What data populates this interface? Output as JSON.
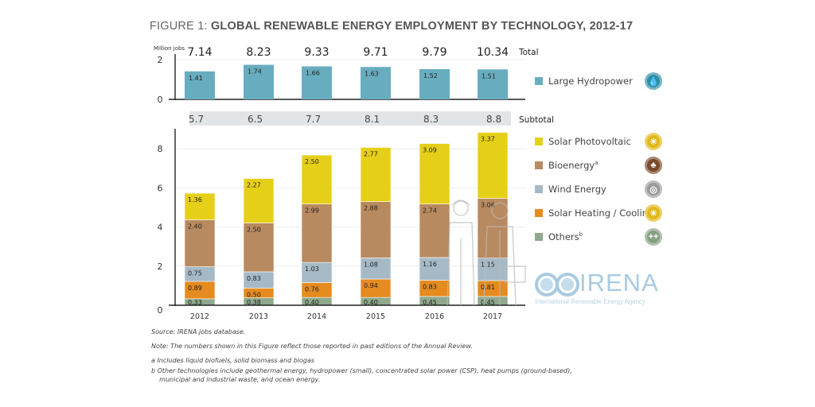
{
  "title": {
    "lead": "FIGURE 1:",
    "main": "GLOBAL RENEWABLE ENERGY EMPLOYMENT BY TECHNOLOGY, 2012-17"
  },
  "chart_data": [
    {
      "type": "bar",
      "title": "Large Hydropower",
      "ylabel": "Million jobs",
      "ylim": [
        0,
        2
      ],
      "yticks": [
        "0",
        "2"
      ],
      "categories": [
        "2012",
        "2013",
        "2014",
        "2015",
        "2016",
        "2017"
      ],
      "series": [
        {
          "name": "Large Hydropower",
          "color": "#68adbf",
          "values": [
            1.41,
            1.74,
            1.66,
            1.63,
            1.52,
            1.51
          ],
          "labels": [
            "1.41",
            "1.74",
            "1.66",
            "1.63",
            "1.52",
            "1.51"
          ]
        }
      ],
      "totals": [
        "7.14",
        "8.23",
        "9.33",
        "9.71",
        "9.79",
        "10.34"
      ],
      "totals_label": "Total",
      "grid": true
    },
    {
      "type": "bar",
      "stacked": true,
      "ylim": [
        0,
        9
      ],
      "yticks": [
        "0",
        "2",
        "4",
        "6",
        "8"
      ],
      "categories": [
        "2012",
        "2013",
        "2014",
        "2015",
        "2016",
        "2017"
      ],
      "series": [
        {
          "name": "Others",
          "color": "#8fa98d",
          "values": [
            0.33,
            0.38,
            0.4,
            0.4,
            0.45,
            0.45
          ],
          "labels": [
            "0.33",
            "0.38",
            "0.40",
            "0.40",
            "0.45",
            "0.45"
          ]
        },
        {
          "name": "Solar Heating/Cooling",
          "color": "#e58b1f",
          "values": [
            0.89,
            0.5,
            0.76,
            0.94,
            0.83,
            0.81
          ],
          "labels": [
            "0.89",
            "0.50",
            "0.76",
            "0.94",
            "0.83",
            "0.81"
          ]
        },
        {
          "name": "Wind Energy",
          "color": "#a6b9c6",
          "values": [
            0.75,
            0.83,
            1.03,
            1.08,
            1.16,
            1.15
          ],
          "labels": [
            "0.75",
            "0.83",
            "1.03",
            "1.08",
            "1.16",
            "1.15"
          ]
        },
        {
          "name": "Bioenergy",
          "color": "#b88a5f",
          "values": [
            2.4,
            2.5,
            2.99,
            2.88,
            2.74,
            3.06
          ],
          "labels": [
            "2.40",
            "2.50",
            "2.99",
            "2.88",
            "2.74",
            "3.06"
          ]
        },
        {
          "name": "Solar Photovoltaic",
          "color": "#e6cf18",
          "values": [
            1.36,
            2.27,
            2.5,
            2.77,
            3.09,
            3.37
          ],
          "labels": [
            "1.36",
            "2.27",
            "2.50",
            "2.77",
            "3.09",
            "3.37"
          ]
        }
      ],
      "subtotals": [
        "5.7",
        "6.5",
        "7.7",
        "8.1",
        "8.3",
        "8.8"
      ],
      "subtotals_label": "Subtotal",
      "grid": true
    }
  ],
  "legend": {
    "placement": "right",
    "items": [
      {
        "label": "Large Hydropower",
        "sup": "",
        "color": "#68adbf",
        "icon": "water-drop-icon",
        "badge_color": "#2f8fa8",
        "glyph": "💧"
      },
      {
        "label": "Solar Photovoltaic",
        "sup": "",
        "color": "#e6cf18",
        "icon": "sun-icon",
        "badge_color": "#e0b81a",
        "glyph": "☀"
      },
      {
        "label": "Bioenergy",
        "sup": "a",
        "color": "#b88a5f",
        "icon": "leaf-pot-icon",
        "badge_color": "#7a4a2a",
        "glyph": "♣"
      },
      {
        "label": "Wind Energy",
        "sup": "",
        "color": "#a6b9c6",
        "icon": "wind-turbine-icon",
        "badge_color": "#9a9a9a",
        "glyph": "◎"
      },
      {
        "label": "Solar Heating / Cooling",
        "sup": "",
        "color": "#e58b1f",
        "icon": "sun-icon",
        "badge_color": "#e0b81a",
        "glyph": "☀"
      },
      {
        "label": "Others",
        "sup": "b",
        "color": "#8fa98d",
        "icon": "plus-plus-icon",
        "badge_color": "#86a082",
        "glyph": "++"
      }
    ]
  },
  "logo": {
    "word": "IRENA",
    "sub": "International Renewable Energy Agency"
  },
  "notes": {
    "source": "Source: IRENA jobs database.",
    "note": "Note: The numbers shown in this Figure reflect those reported in past editions of the Annual Review.",
    "a": "a  Includes liquid biofuels, solid biomass and biogas",
    "b1": "b  Other technologies include geothermal energy, hydropower (small), concentrated solar power (CSP), heat pumps (ground-based),",
    "b2": "    municipal and industrial waste, and ocean energy."
  }
}
